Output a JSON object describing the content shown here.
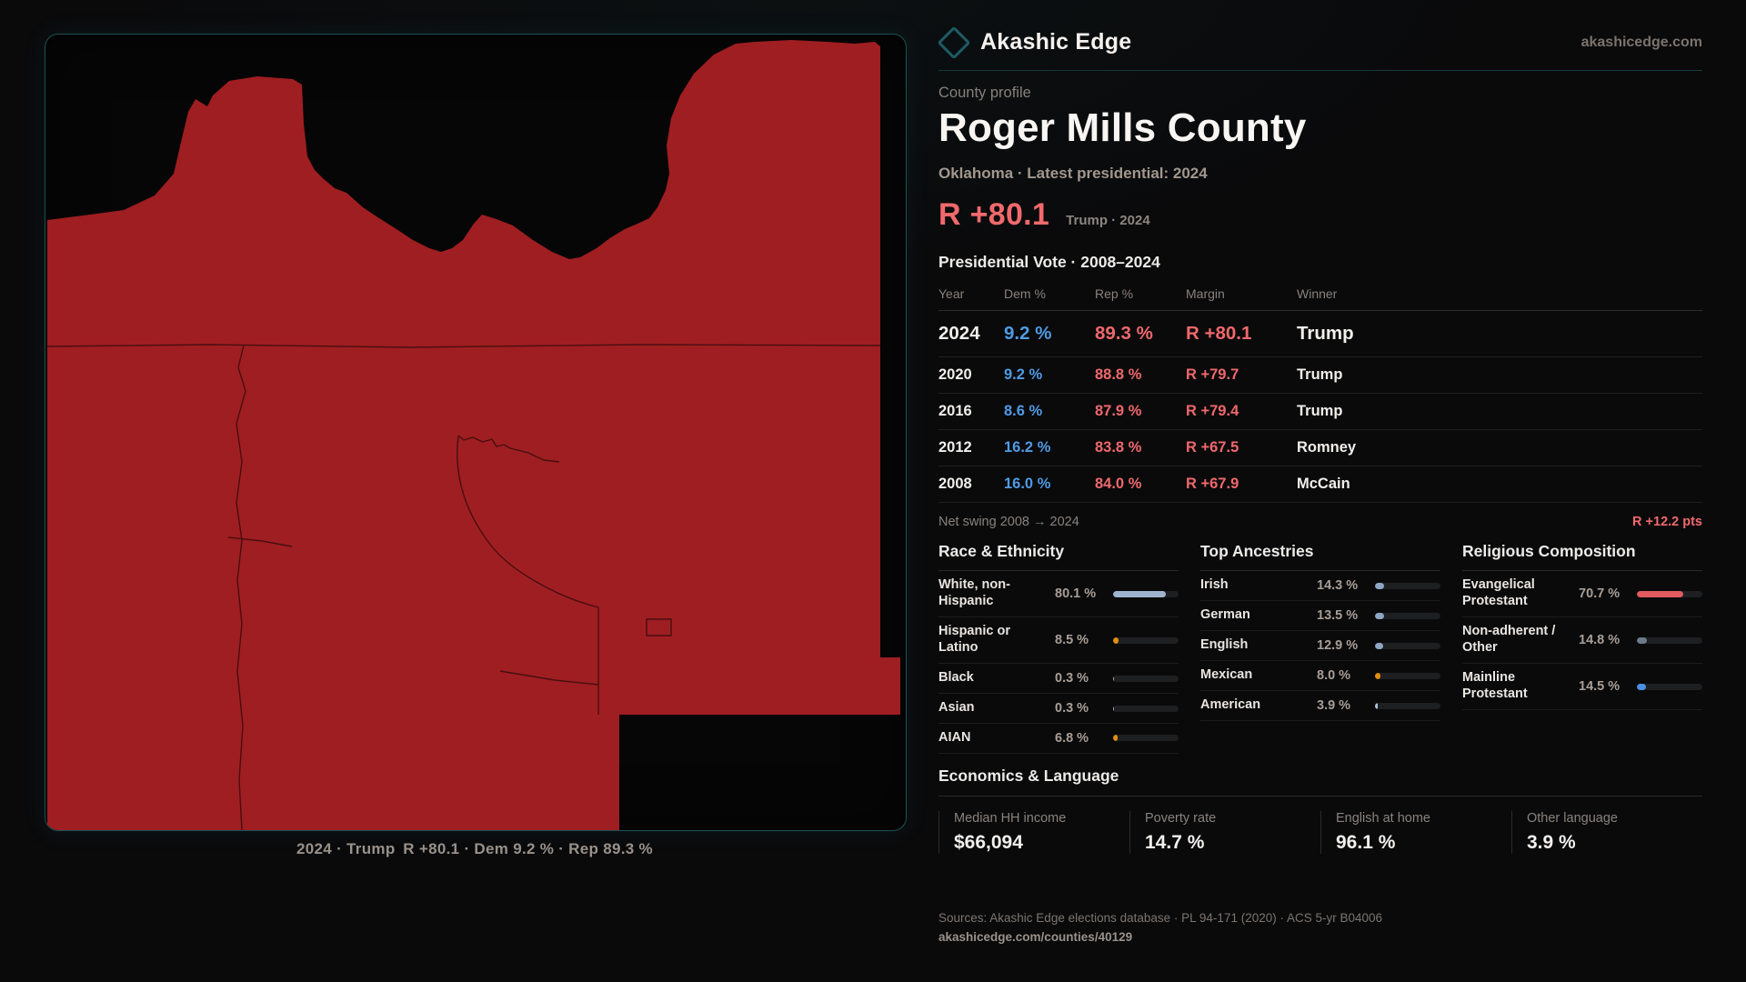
{
  "brand": {
    "name": "Akashic Edge",
    "domain": "akashicedge.com",
    "logo_icon": "diamond-icon"
  },
  "profile": {
    "kicker": "County profile",
    "title": "Roger Mills County",
    "subtitle": "Oklahoma · Latest presidential: 2024",
    "headline_margin": "R +80.1",
    "headline_note": "Trump · 2024"
  },
  "map": {
    "caption": "2024 · Trump R +80.1 · Dem 9.2 % · Rep 89.3 %",
    "county_fill": "#9f1e21",
    "panel_border": "#1d5058"
  },
  "vote_table": {
    "title": "Presidential Vote · 2008–2024",
    "columns": [
      "Year",
      "Dem %",
      "Rep %",
      "Margin",
      "Winner"
    ],
    "rows": [
      {
        "year": "2024",
        "dem": "9.2 %",
        "rep": "89.3 %",
        "margin": "R +80.1",
        "winner": "Trump"
      },
      {
        "year": "2020",
        "dem": "9.2 %",
        "rep": "88.8 %",
        "margin": "R +79.7",
        "winner": "Trump"
      },
      {
        "year": "2016",
        "dem": "8.6 %",
        "rep": "87.9 %",
        "margin": "R +79.4",
        "winner": "Trump"
      },
      {
        "year": "2012",
        "dem": "16.2 %",
        "rep": "83.8 %",
        "margin": "R +67.5",
        "winner": "Romney"
      },
      {
        "year": "2008",
        "dem": "16.0 %",
        "rep": "84.0 %",
        "margin": "R +67.9",
        "winner": "McCain"
      }
    ],
    "net_swing_label": "Net swing 2008 → 2024",
    "net_swing_value": "R +12.2 pts"
  },
  "demographics": {
    "sections": [
      {
        "title": "Race & Ethnicity",
        "rows": [
          {
            "label": "White, non-Hispanic",
            "value": "80.1 %",
            "pct": 80.1,
            "color": "#9fb4cf"
          },
          {
            "label": "Hispanic or Latino",
            "value": "8.5 %",
            "pct": 8.5,
            "color": "#e08f12"
          },
          {
            "label": "Black",
            "value": "0.3 %",
            "pct": 0.3,
            "color": "#9fb4cf"
          },
          {
            "label": "Asian",
            "value": "0.3 %",
            "pct": 0.3,
            "color": "#9fb4cf"
          },
          {
            "label": "AIAN",
            "value": "6.8 %",
            "pct": 6.8,
            "color": "#e08f12"
          }
        ]
      },
      {
        "title": "Top Ancestries",
        "rows": [
          {
            "label": "Irish",
            "value": "14.3 %",
            "pct": 14.3,
            "color": "#8ea6c4"
          },
          {
            "label": "German",
            "value": "13.5 %",
            "pct": 13.5,
            "color": "#8ea6c4"
          },
          {
            "label": "English",
            "value": "12.9 %",
            "pct": 12.9,
            "color": "#8ea6c4"
          },
          {
            "label": "Mexican",
            "value": "8.0 %",
            "pct": 8.0,
            "color": "#e08f12"
          },
          {
            "label": "American",
            "value": "3.9 %",
            "pct": 3.9,
            "color": "#a9c0d9"
          }
        ]
      },
      {
        "title": "Religious Composition",
        "rows": [
          {
            "label": "Evangelical Protestant",
            "value": "70.7 %",
            "pct": 70.7,
            "color": "#e05a60"
          },
          {
            "label": "Non-adherent / Other",
            "value": "14.8 %",
            "pct": 14.8,
            "color": "#6d7a88"
          },
          {
            "label": "Mainline Protestant",
            "value": "14.5 %",
            "pct": 14.5,
            "color": "#4b90e2"
          }
        ]
      }
    ]
  },
  "economics": {
    "title": "Economics & Language",
    "stats": [
      {
        "label": "Median HH income",
        "value": "$66,094"
      },
      {
        "label": "Poverty rate",
        "value": "14.7 %"
      },
      {
        "label": "English at home",
        "value": "96.1 %"
      },
      {
        "label": "Other language",
        "value": "3.9 %"
      }
    ]
  },
  "footer": {
    "sources": "Sources: Akashic Edge elections database · PL 94-171 (2020) · ACS 5-yr B04006",
    "permalink": "akashicedge.com/counties/40129"
  },
  "palette": {
    "rep_red": "#ef686c",
    "dem_blue": "#4f9be4",
    "accent_teal": "#1d5058",
    "text_primary": "#f4f1ee",
    "text_muted": "#8a827c"
  }
}
